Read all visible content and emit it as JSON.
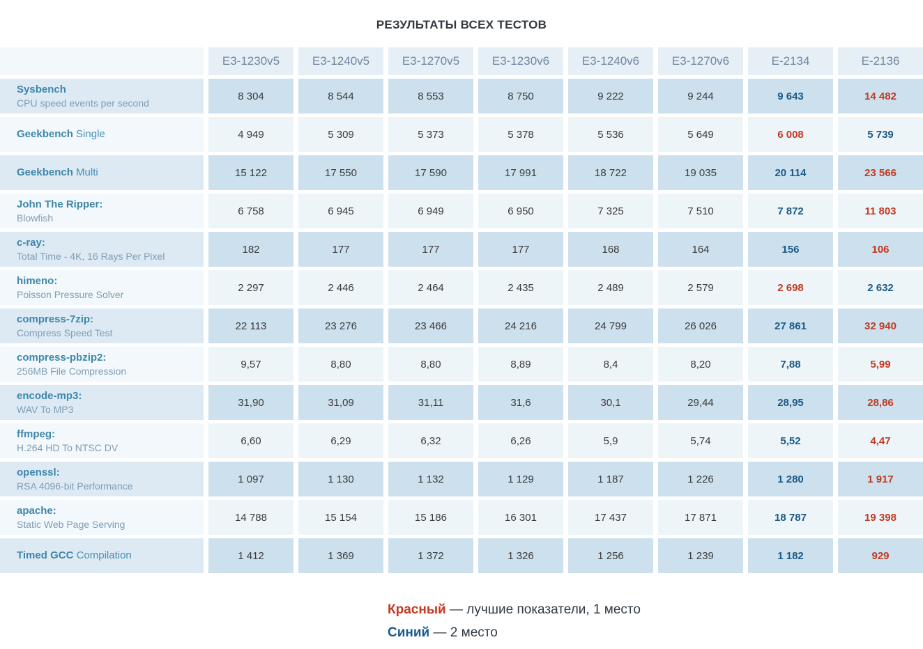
{
  "title": "РЕЗУЛЬТАТЫ ВСЕХ ТЕСТОВ",
  "colors": {
    "best_place_red": "#c13a22",
    "second_place_blue": "#1c5a87",
    "row_dark_bg": "#cde0ed",
    "row_light_bg": "#eef5f9",
    "header_bg": "#e6eef6",
    "label_accent": "#3e87ab"
  },
  "chart_data": {
    "type": "table",
    "title": "РЕЗУЛЬТАТЫ ВСЕХ ТЕСТОВ",
    "columns": [
      "E3-1230v5",
      "E3-1240v5",
      "E3-1270v5",
      "E3-1230v6",
      "E3-1240v6",
      "E3-1270v6",
      "E-2134",
      "E-2136"
    ],
    "rows": [
      {
        "name": "Sysbench",
        "name_rest": "",
        "subtitle": "CPU speed events per second",
        "values": [
          "8 304",
          "8 544",
          "8 553",
          "8 750",
          "9 222",
          "9 244",
          "9 643",
          "14 482"
        ],
        "marks": [
          "",
          "",
          "",
          "",
          "",
          "",
          "blue",
          "red"
        ]
      },
      {
        "name": "Geekbench",
        "name_rest": " Single",
        "subtitle": "",
        "values": [
          "4 949",
          "5 309",
          "5 373",
          "5 378",
          "5 536",
          "5 649",
          "6 008",
          "5 739"
        ],
        "marks": [
          "",
          "",
          "",
          "",
          "",
          "",
          "red",
          "blue"
        ]
      },
      {
        "name": "Geekbench",
        "name_rest": " Multi",
        "subtitle": "",
        "values": [
          "15 122",
          "17 550",
          "17 590",
          "17 991",
          "18 722",
          "19 035",
          "20 114",
          "23 566"
        ],
        "marks": [
          "",
          "",
          "",
          "",
          "",
          "",
          "blue",
          "red"
        ]
      },
      {
        "name": "John The Ripper:",
        "name_rest": "",
        "subtitle": "Blowfish",
        "values": [
          "6 758",
          "6 945",
          "6 949",
          "6 950",
          "7 325",
          "7 510",
          "7 872",
          "11 803"
        ],
        "marks": [
          "",
          "",
          "",
          "",
          "",
          "",
          "blue",
          "red"
        ]
      },
      {
        "name": "c-ray:",
        "name_rest": "",
        "subtitle": "Total Time - 4K, 16 Rays Per Pixel",
        "values": [
          "182",
          "177",
          "177",
          "177",
          "168",
          "164",
          "156",
          "106"
        ],
        "marks": [
          "",
          "",
          "",
          "",
          "",
          "",
          "blue",
          "red"
        ]
      },
      {
        "name": "himeno:",
        "name_rest": "",
        "subtitle": "Poisson Pressure Solver",
        "values": [
          "2 297",
          "2 446",
          "2 464",
          "2 435",
          "2 489",
          "2 579",
          "2 698",
          "2 632"
        ],
        "marks": [
          "",
          "",
          "",
          "",
          "",
          "",
          "red",
          "blue"
        ]
      },
      {
        "name": "compress-7zip:",
        "name_rest": "",
        "subtitle": "Compress Speed Test",
        "values": [
          "22 113",
          "23 276",
          "23 466",
          "24 216",
          "24 799",
          "26 026",
          "27 861",
          "32 940"
        ],
        "marks": [
          "",
          "",
          "",
          "",
          "",
          "",
          "blue",
          "red"
        ]
      },
      {
        "name": "compress-pbzip2:",
        "name_rest": "",
        "subtitle": "256MB File Compression",
        "values": [
          "9,57",
          "8,80",
          "8,80",
          "8,89",
          "8,4",
          "8,20",
          "7,88",
          "5,99"
        ],
        "marks": [
          "",
          "",
          "",
          "",
          "",
          "",
          "blue",
          "red"
        ]
      },
      {
        "name": "encode-mp3:",
        "name_rest": "",
        "subtitle": "WAV To MP3",
        "values": [
          "31,90",
          "31,09",
          "31,11",
          "31,6",
          "30,1",
          "29,44",
          "28,95",
          "28,86"
        ],
        "marks": [
          "",
          "",
          "",
          "",
          "",
          "",
          "blue",
          "red"
        ]
      },
      {
        "name": "ffmpeg:",
        "name_rest": "",
        "subtitle": "H.264 HD To NTSC DV",
        "values": [
          "6,60",
          "6,29",
          "6,32",
          "6,26",
          "5,9",
          "5,74",
          "5,52",
          "4,47"
        ],
        "marks": [
          "",
          "",
          "",
          "",
          "",
          "",
          "blue",
          "red"
        ]
      },
      {
        "name": "openssl:",
        "name_rest": "",
        "subtitle": "RSA 4096-bit Performance",
        "values": [
          "1 097",
          "1 130",
          "1 132",
          "1 129",
          "1 187",
          "1 226",
          "1 280",
          "1 917"
        ],
        "marks": [
          "",
          "",
          "",
          "",
          "",
          "",
          "blue",
          "red"
        ]
      },
      {
        "name": "apache:",
        "name_rest": "",
        "subtitle": "Static Web Page Serving",
        "values": [
          "14 788",
          "15 154",
          "15 186",
          "16 301",
          "17 437",
          "17 871",
          "18 787",
          "19 398"
        ],
        "marks": [
          "",
          "",
          "",
          "",
          "",
          "",
          "blue",
          "red"
        ]
      },
      {
        "name": "Timed GCC",
        "name_rest": " Compilation",
        "subtitle": "",
        "values": [
          "1 412",
          "1 369",
          "1 372",
          "1 326",
          "1 256",
          "1 239",
          "1 182",
          "929"
        ],
        "marks": [
          "",
          "",
          "",
          "",
          "",
          "",
          "blue",
          "red"
        ]
      }
    ]
  },
  "legend": {
    "red_term": "Красный",
    "red_desc": " — лучшие показатели, 1 место",
    "blue_term": "Синий",
    "blue_desc": " — 2 место"
  }
}
